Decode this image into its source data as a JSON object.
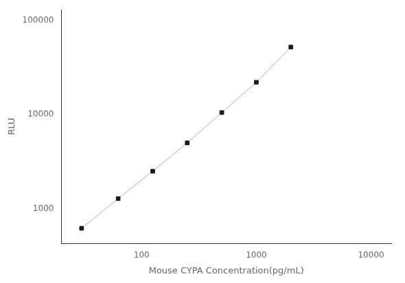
{
  "chart_data": {
    "type": "line",
    "x": [
      30,
      62.5,
      125,
      250,
      500,
      1000,
      2000
    ],
    "values": [
      620,
      1280,
      2500,
      5000,
      10500,
      22000,
      52000
    ],
    "xlim": [
      20,
      15000
    ],
    "ylim": [
      430,
      130000
    ],
    "xticks": [
      100,
      1000,
      10000
    ],
    "yticks": [
      1000,
      10000,
      100000
    ],
    "xlabel": "Mouse CYPA Concentration(pg/mL)",
    "ylabel": "RLU",
    "log": true,
    "grid": false,
    "color": "#b0b0b0",
    "colors": [
      "#1a1a1a",
      "#1a1a1a",
      "#1a1a1a",
      "#1a1a1a",
      "#1a1a1a",
      "#1a1a1a",
      "#1a1a1a"
    ],
    "marker": "square",
    "line_style": "solid"
  }
}
